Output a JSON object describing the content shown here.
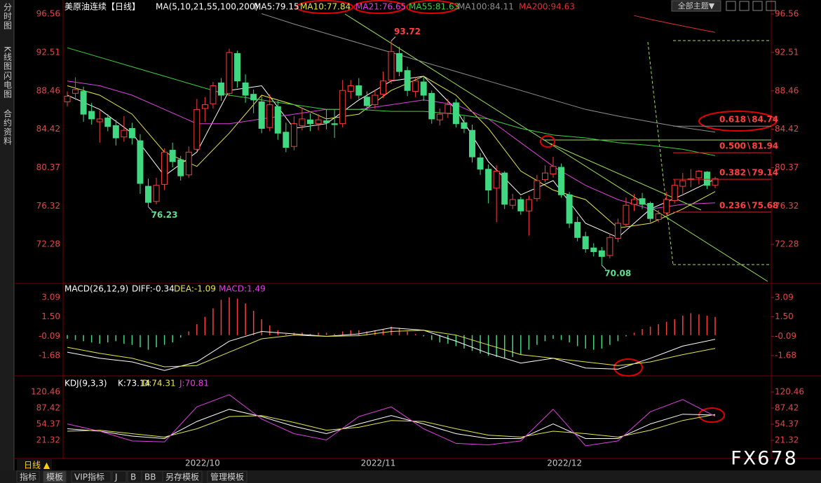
{
  "sidebar": {
    "tabs": [
      "分时图",
      "K线图",
      "闪电图",
      "合约资料"
    ]
  },
  "toolbar": {
    "period": "日线 ▲",
    "tabs": [
      "指标",
      "模板",
      "VIP指标",
      "J",
      "B",
      "BB",
      "另存模板",
      "管理模板"
    ],
    "theme": "全部主题▼"
  },
  "watermark": "FX678",
  "chart_data": [
    {
      "type": "candlestick",
      "title": "美原油连续【日线】",
      "subtitle": "MA(5,10,21,55,100,200)",
      "up_color": "#ff3c3c",
      "down_color": "#40d880",
      "ylim": [
        68.15,
        97.3
      ],
      "yticks": [
        96.56,
        92.51,
        88.46,
        84.42,
        80.37,
        76.32,
        72.28
      ],
      "ohlc": [
        [
          87.3,
          88.4,
          86.8,
          87.9
        ],
        [
          88.2,
          89.9,
          87.5,
          88.6
        ],
        [
          88.4,
          88.9,
          85.2,
          86.0
        ],
        [
          86.3,
          87.2,
          84.9,
          85.5
        ],
        [
          85.2,
          86.4,
          83.0,
          85.5
        ],
        [
          85.6,
          86.0,
          84.2,
          84.7
        ],
        [
          84.8,
          85.4,
          82.7,
          83.5
        ],
        [
          83.6,
          85.8,
          83.1,
          84.3
        ],
        [
          84.5,
          85.1,
          82.8,
          83.5
        ],
        [
          83.2,
          83.9,
          77.6,
          78.7
        ],
        [
          78.4,
          79.2,
          76.23,
          76.7
        ],
        [
          76.8,
          79.3,
          76.5,
          78.5
        ],
        [
          78.6,
          82.4,
          78.0,
          82.0
        ],
        [
          82.2,
          83.0,
          80.4,
          81.0
        ],
        [
          81.2,
          81.6,
          79.0,
          79.5
        ],
        [
          79.6,
          82.6,
          79.3,
          82.0
        ],
        [
          82.3,
          87.6,
          82.1,
          86.5
        ],
        [
          86.6,
          87.8,
          85.2,
          87.0
        ],
        [
          87.1,
          89.4,
          86.6,
          89.0
        ],
        [
          89.3,
          89.8,
          87.4,
          88.0
        ],
        [
          88.2,
          92.9,
          87.9,
          92.5
        ],
        [
          92.4,
          92.7,
          88.8,
          89.5
        ],
        [
          89.3,
          90.2,
          87.2,
          88.0
        ],
        [
          88.1,
          88.6,
          86.1,
          87.5
        ],
        [
          87.3,
          87.9,
          84.0,
          84.5
        ],
        [
          84.6,
          88.1,
          84.2,
          87.0
        ],
        [
          86.8,
          87.4,
          83.3,
          84.0
        ],
        [
          84.1,
          85.1,
          82.0,
          82.5
        ],
        [
          82.6,
          85.8,
          82.2,
          85.0
        ],
        [
          84.8,
          86.7,
          84.3,
          85.5
        ],
        [
          85.4,
          86.1,
          84.2,
          85.0
        ],
        [
          85.0,
          86.0,
          84.3,
          85.4
        ],
        [
          85.3,
          86.5,
          84.4,
          85.1
        ],
        [
          85.0,
          86.5,
          83.5,
          84.9
        ],
        [
          85.0,
          89.6,
          84.6,
          88.5
        ],
        [
          88.4,
          89.6,
          87.6,
          89.0
        ],
        [
          89.0,
          89.8,
          87.6,
          88.0
        ],
        [
          87.8,
          88.4,
          86.4,
          86.9
        ],
        [
          87.0,
          88.6,
          86.6,
          88.0
        ],
        [
          88.1,
          90.5,
          87.7,
          89.5
        ],
        [
          89.6,
          93.72,
          89.2,
          92.6
        ],
        [
          92.4,
          93.1,
          90.0,
          90.5
        ],
        [
          90.6,
          91.0,
          87.9,
          88.5
        ],
        [
          88.4,
          89.9,
          87.8,
          89.5
        ],
        [
          89.4,
          89.9,
          87.4,
          88.0
        ],
        [
          88.2,
          88.5,
          85.0,
          85.5
        ],
        [
          85.4,
          86.6,
          84.8,
          86.0
        ],
        [
          86.1,
          87.6,
          85.6,
          87.0
        ],
        [
          87.2,
          87.6,
          84.6,
          85.0
        ],
        [
          85.1,
          85.8,
          84.0,
          84.5
        ],
        [
          84.3,
          84.9,
          80.9,
          81.5
        ],
        [
          81.4,
          81.9,
          79.6,
          80.2
        ],
        [
          80.2,
          80.7,
          76.6,
          78.0
        ],
        [
          78.2,
          80.6,
          74.6,
          80.0
        ],
        [
          79.8,
          80.0,
          76.0,
          76.5
        ],
        [
          76.4,
          77.6,
          76.0,
          77.0
        ],
        [
          77.0,
          77.3,
          75.4,
          75.8
        ],
        [
          75.8,
          77.4,
          73.2,
          77.0
        ],
        [
          77.1,
          79.6,
          76.8,
          79.0
        ],
        [
          79.1,
          80.6,
          78.8,
          79.8
        ],
        [
          79.7,
          81.5,
          79.3,
          80.5
        ],
        [
          80.4,
          80.8,
          77.2,
          77.5
        ],
        [
          77.5,
          77.8,
          74.0,
          74.5
        ],
        [
          74.6,
          75.2,
          72.6,
          73.0
        ],
        [
          73.1,
          73.6,
          71.4,
          71.8
        ],
        [
          71.9,
          72.4,
          71.0,
          71.5
        ],
        [
          71.6,
          72.0,
          70.08,
          71.0
        ],
        [
          71.1,
          73.4,
          70.8,
          73.0
        ],
        [
          72.9,
          75.0,
          72.5,
          74.5
        ],
        [
          74.4,
          77.2,
          74.1,
          76.4
        ],
        [
          76.5,
          77.6,
          75.8,
          77.0
        ],
        [
          77.1,
          77.7,
          76.0,
          76.5
        ],
        [
          76.6,
          76.8,
          74.6,
          75.0
        ],
        [
          74.9,
          75.9,
          74.6,
          75.5
        ],
        [
          75.6,
          77.8,
          75.4,
          77.0
        ],
        [
          76.9,
          79.1,
          76.6,
          78.5
        ],
        [
          78.4,
          79.8,
          77.6,
          79.0
        ],
        [
          79.1,
          80.2,
          78.3,
          79.2
        ],
        [
          79.3,
          80.1,
          78.6,
          80.0
        ],
        [
          79.9,
          80.0,
          78.1,
          78.5
        ],
        [
          78.5,
          79.4,
          78.2,
          79.2
        ]
      ],
      "series": [
        {
          "name": "MA5:79.15",
          "color": "#ffffff",
          "x": [
            0,
            4,
            8,
            12,
            16,
            20,
            24,
            28,
            32,
            36,
            40,
            44,
            48,
            52,
            56,
            60,
            64,
            68,
            72,
            76,
            80
          ],
          "values": [
            88,
            86.5,
            84,
            79.5,
            82,
            88.5,
            89,
            84.5,
            85,
            87.5,
            89.5,
            90,
            86.5,
            81,
            77.5,
            79,
            74.5,
            73,
            76,
            77.5,
            79.15
          ]
        },
        {
          "name": "MA10:77.84",
          "color": "#e8e84a",
          "x": [
            0,
            4,
            8,
            12,
            16,
            20,
            24,
            28,
            32,
            36,
            40,
            44,
            48,
            52,
            56,
            60,
            64,
            68,
            72,
            76,
            80
          ],
          "values": [
            89,
            88,
            86,
            82,
            80.5,
            84,
            88,
            87,
            85.5,
            86,
            88.5,
            90,
            88,
            84.5,
            80,
            78,
            77,
            74,
            74.5,
            76,
            77.84
          ]
        },
        {
          "name": "MA21:76.65",
          "color": "#e040e0",
          "x": [
            0,
            4,
            8,
            12,
            16,
            20,
            24,
            28,
            32,
            36,
            40,
            44,
            48,
            52,
            56,
            60,
            64,
            68,
            72,
            76,
            80
          ],
          "values": [
            89.5,
            89,
            88,
            86.5,
            85,
            85,
            85.5,
            86,
            86.5,
            86.5,
            87,
            87.5,
            87,
            85.5,
            83,
            80.5,
            78.5,
            77,
            76,
            76.5,
            76.65
          ]
        },
        {
          "name": "MA55:81.63",
          "color": "#40d040",
          "x": [
            0,
            4,
            8,
            12,
            16,
            20,
            24,
            28,
            32,
            36,
            40,
            44,
            48,
            52,
            56,
            60,
            64,
            68,
            72,
            76,
            80
          ],
          "values": [
            93,
            92,
            91,
            90,
            89,
            88,
            87.5,
            87,
            86.5,
            86.5,
            86.3,
            86.3,
            86,
            85.5,
            84.5,
            83.8,
            83.5,
            83,
            82.7,
            82.3,
            81.63
          ]
        },
        {
          "name": "MA100:84.11",
          "color": "#909090",
          "x": [
            24,
            28,
            32,
            36,
            40,
            44,
            48,
            52,
            56,
            60,
            64,
            68,
            72,
            76,
            80
          ],
          "values": [
            96.6,
            95.5,
            94.5,
            93.5,
            92.5,
            91.5,
            90.5,
            89.5,
            88.5,
            87.5,
            86.5,
            85.8,
            85.2,
            84.6,
            84.11
          ]
        },
        {
          "name": "MA200:94.63",
          "color": "#e03030",
          "x": [
            70,
            72,
            76,
            80
          ],
          "values": [
            96.4,
            96.0,
            95.3,
            94.63
          ]
        }
      ],
      "annotations": [
        {
          "text": "93.72",
          "value": 93.72,
          "index": 40,
          "color": "#ff4040"
        },
        {
          "text": "76.23",
          "value": 76.23,
          "index": 10,
          "color": "#60e090"
        },
        {
          "text": "70.08",
          "value": 70.08,
          "index": 66,
          "color": "#60e090"
        }
      ],
      "fib_levels": [
        {
          "label": "0.618∖84.74",
          "value": 84.74
        },
        {
          "label": "0.500∖81.94",
          "value": 81.94
        },
        {
          "label": "0.382∖79.14",
          "value": 79.14
        },
        {
          "label": "0.236∖75.68",
          "value": 75.68
        }
      ]
    },
    {
      "type": "macd",
      "title": "MACD(26,12,9)",
      "ylim": [
        -3.35,
        4.24
      ],
      "yticks": [
        3.09,
        {
          "value": 1.5,
          "label": "1.50"
        },
        -0.09,
        -1.68
      ],
      "series": [
        {
          "name": "DIFF:-0.34",
          "color": "#ffffff",
          "x": [
            0,
            4,
            8,
            12,
            16,
            20,
            24,
            28,
            32,
            36,
            40,
            44,
            48,
            52,
            56,
            60,
            64,
            68,
            72,
            76,
            80
          ],
          "values": [
            -1.4,
            -1.9,
            -2.2,
            -2.9,
            -2.2,
            -0.5,
            0.3,
            0.1,
            -0.1,
            0.1,
            0.6,
            0.4,
            -0.5,
            -1.5,
            -2.3,
            -1.9,
            -2.7,
            -2.8,
            -1.9,
            -0.9,
            -0.34
          ]
        },
        {
          "name": "DEA:-1.09",
          "color": "#e8e84a",
          "x": [
            0,
            4,
            8,
            12,
            16,
            20,
            24,
            28,
            32,
            36,
            40,
            44,
            48,
            52,
            56,
            60,
            64,
            68,
            72,
            76,
            80
          ],
          "values": [
            -1.0,
            -1.5,
            -1.9,
            -2.6,
            -2.5,
            -1.4,
            -0.3,
            0,
            -0.1,
            -0.05,
            0.3,
            0.4,
            0,
            -0.8,
            -1.6,
            -1.9,
            -2.2,
            -2.5,
            -2.2,
            -1.6,
            -1.09
          ]
        }
      ],
      "histogram": {
        "name": "MACD:1.49",
        "color": "#e040e0",
        "up_color": "#ff3c3c",
        "down_color": "#40d880",
        "values": [
          -0.3,
          -0.4,
          -0.5,
          -0.6,
          -0.7,
          -0.6,
          -0.5,
          -0.7,
          -0.8,
          -1.0,
          -1.2,
          -1.0,
          -0.8,
          -0.6,
          -0.2,
          0.3,
          0.9,
          1.5,
          2.2,
          2.9,
          3.1,
          3.0,
          2.6,
          2.0,
          1.3,
          0.8,
          0.4,
          0.1,
          0.2,
          0.2,
          0.1,
          0.2,
          0.2,
          0.1,
          0.3,
          0.4,
          0.4,
          0.3,
          0.4,
          0.5,
          0.7,
          0.6,
          0.3,
          0.1,
          -0.1,
          -0.4,
          -0.6,
          -0.7,
          -0.9,
          -1.1,
          -1.3,
          -1.5,
          -1.7,
          -1.8,
          -1.9,
          -1.8,
          -1.6,
          -1.2,
          -0.8,
          -0.5,
          -0.3,
          -0.4,
          -0.6,
          -0.9,
          -1.1,
          -1.2,
          -1.1,
          -0.8,
          -0.5,
          -0.1,
          0.2,
          0.5,
          0.7,
          0.9,
          1.1,
          1.3,
          1.6,
          1.8,
          1.7,
          1.6,
          1.49
        ]
      }
    },
    {
      "type": "kdj",
      "title": "KDJ(9,3,3)",
      "ylim": [
        -16,
        149.2
      ],
      "yticks": [
        120.46,
        87.42,
        54.37,
        21.32
      ],
      "xticks": [
        {
          "value": 16.7,
          "label": "2022/10"
        },
        {
          "value": 38.4,
          "label": "2022/11"
        },
        {
          "value": 61.4,
          "label": "2022/12"
        }
      ],
      "series": [
        {
          "name": "K:73.14",
          "color": "#ffffff",
          "x": [
            0,
            4,
            8,
            12,
            16,
            20,
            24,
            28,
            32,
            36,
            40,
            44,
            48,
            52,
            56,
            60,
            64,
            68,
            72,
            76,
            80
          ],
          "values": [
            45,
            40,
            30,
            25,
            60,
            85,
            70,
            50,
            35,
            55,
            72,
            55,
            35,
            25,
            25,
            55,
            25,
            25,
            55,
            75,
            73.14
          ]
        },
        {
          "name": "D:74.31",
          "color": "#e8e84a",
          "x": [
            0,
            4,
            8,
            12,
            16,
            20,
            24,
            28,
            32,
            36,
            40,
            44,
            48,
            52,
            56,
            60,
            64,
            68,
            72,
            76,
            80
          ],
          "values": [
            40,
            42,
            35,
            28,
            45,
            70,
            72,
            58,
            42,
            48,
            62,
            60,
            45,
            32,
            28,
            40,
            35,
            28,
            42,
            62,
            74.31
          ]
        },
        {
          "name": "J:70.81",
          "color": "#e040e0",
          "x": [
            0,
            4,
            8,
            12,
            16,
            20,
            24,
            28,
            32,
            36,
            40,
            44,
            48,
            52,
            56,
            60,
            64,
            68,
            72,
            76,
            80
          ],
          "values": [
            55,
            40,
            20,
            18,
            90,
            115,
            65,
            35,
            22,
            70,
            90,
            45,
            15,
            12,
            20,
            85,
            10,
            20,
            80,
            105,
            70.81
          ]
        }
      ]
    }
  ]
}
